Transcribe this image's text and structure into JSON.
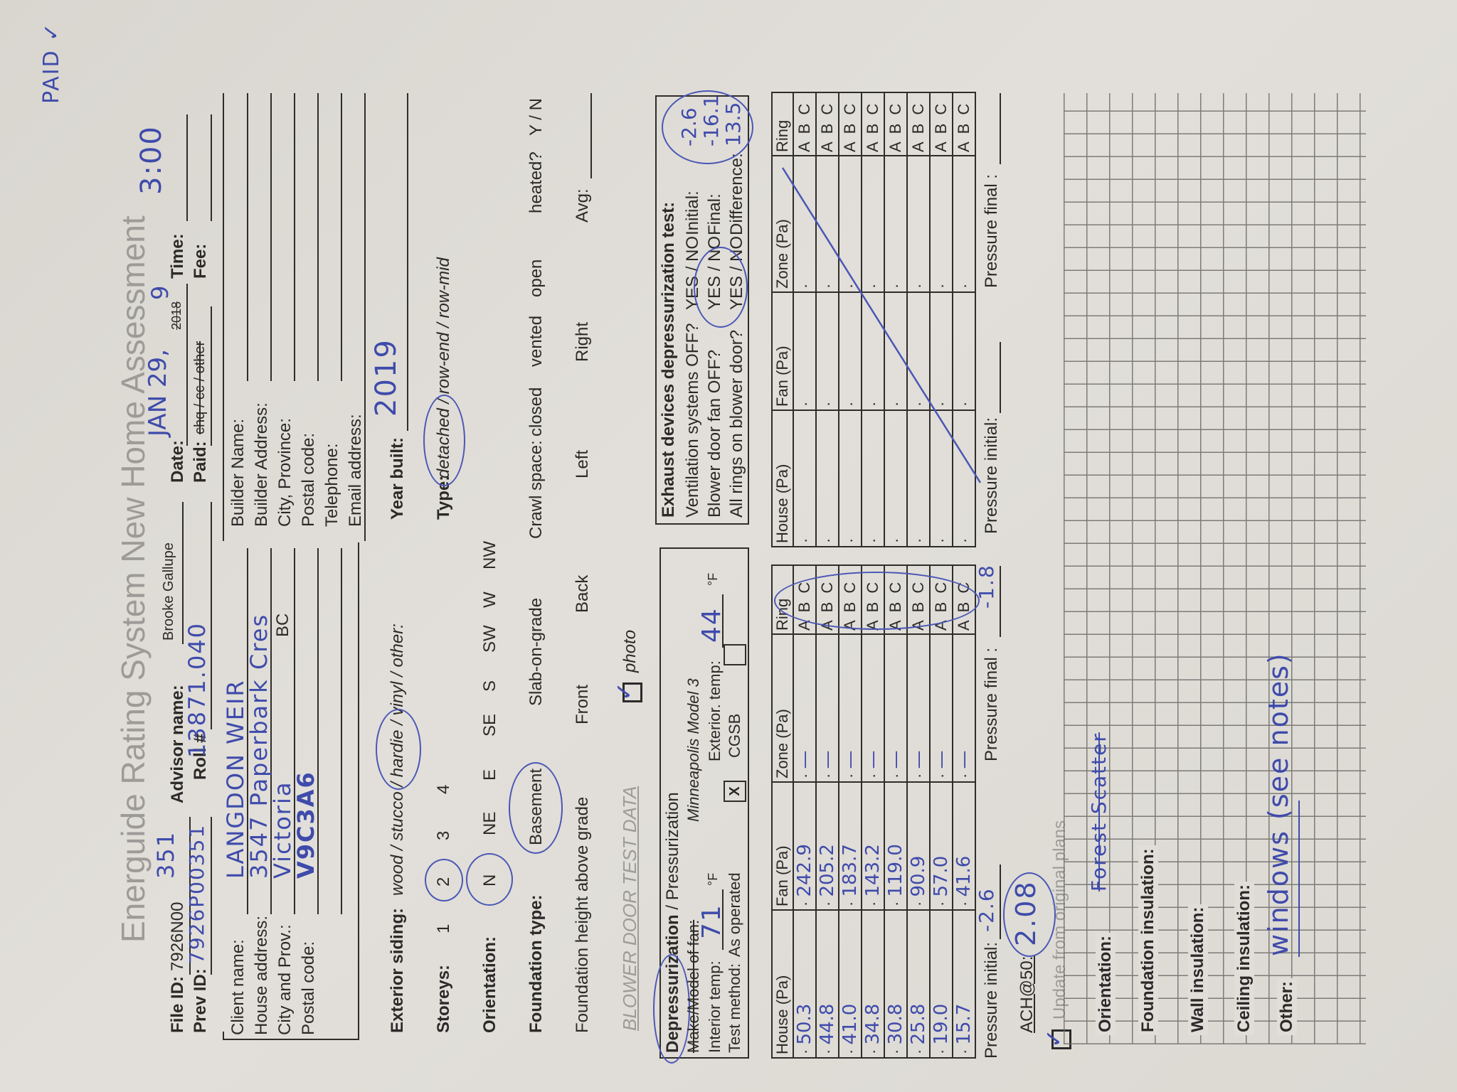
{
  "header": {
    "title": "Energuide Rating System New Home Assessment",
    "advisor_value": "Brooke Gallupe",
    "file_id_label": "File ID:",
    "file_id_printed": "7926N00",
    "file_id_hand": "351",
    "prev_id_label": "Prev ID:",
    "prev_id_value": "7926P00351",
    "advisor_label": "Advisor name:",
    "roll_label": "Roll #",
    "roll_value": "13871.040",
    "date_label": "Date:",
    "date_value": "JAN 29,",
    "date_year_printed": "2018",
    "date_year_hand": "9",
    "paid_label": "Paid:",
    "paid_options": "chq / cc / other",
    "time_label": "Time:",
    "time_value": "3:00",
    "fee_label": "Fee:",
    "paid_note": "PAID ✓"
  },
  "client": {
    "fields": [
      {
        "label": "Client name:",
        "value": "LANGDON WEIR"
      },
      {
        "label": "House address:",
        "value": "3547 Paperbark Cres"
      },
      {
        "label": "City and Prov.:",
        "value": "Victoria",
        "suffix": "BC"
      },
      {
        "label": "Postal code:",
        "value": "V9C3A6"
      }
    ]
  },
  "builder": {
    "fields": [
      "Builder Name:",
      "Builder Address:",
      "City, Province:",
      "Postal code:",
      "Telephone:",
      "Email address:"
    ]
  },
  "house": {
    "siding_label": "Exterior siding:",
    "siding_options": "wood / stucco / hardie / vinyl / other:",
    "siding_selected": "hardie",
    "year_label": "Year built:",
    "year_value": "2019",
    "storeys_label": "Storeys:",
    "storeys": [
      "1",
      "2",
      "3",
      "4"
    ],
    "storeys_selected": "2",
    "type_label": "Type:",
    "type_options": "detached / row-end / row-mid",
    "type_selected": "detached",
    "orientation_label": "Orientation:",
    "orientations": [
      "N",
      "NE",
      "E",
      "SE",
      "S",
      "SW",
      "W",
      "NW"
    ],
    "orientation_selected": "N",
    "foundation_label": "Foundation type:",
    "foundation_options": [
      "Basement",
      "Slab-on-grade"
    ],
    "foundation_selected": "Basement",
    "crawl_label": "Crawl space:",
    "crawl_options": [
      "closed",
      "vented",
      "open"
    ],
    "heated_label": "heated?",
    "heated_options": "Y / N",
    "height_label": "Foundation height above grade",
    "height_options": [
      "Front",
      "Back",
      "Left",
      "Right"
    ],
    "avg_label": "Avg:",
    "blower_title": "BLOWER DOOR TEST DATA",
    "photo_label": "photo",
    "photo_checked": true
  },
  "depress": {
    "title_bold": "Depressurization",
    "title_rest": " / Pressurization",
    "fan_label": "Make/Model of fan:",
    "fan_value": "Minneapolis Model 3",
    "interior_label": "Interior temp:",
    "interior_value": "71",
    "unit": "°F",
    "exterior_label": "Exterior. temp:",
    "exterior_value": "44",
    "method_label": "Test method:",
    "method_as_operated": "As operated",
    "method_mark": "X",
    "method_cgsb": "CGSB"
  },
  "exhaust": {
    "title": "Exhaust devices depressurization test:",
    "questions": [
      {
        "q": "Ventilation systems OFF?",
        "opt": "YES / NO",
        "k": "Initial:",
        "v": "-2.6"
      },
      {
        "q": "Blower door fan OFF?",
        "opt": "YES / NO",
        "k": "Final:",
        "v": "-16.1"
      },
      {
        "q": "All rings on blower door?",
        "opt": "YES / NO",
        "k": "Difference:",
        "v": "13.5"
      }
    ]
  },
  "table_headers": [
    "House (Pa)",
    "Fan (Pa)",
    "Zone (Pa)",
    "Ring"
  ],
  "table1": {
    "rows": [
      {
        "house": "50.3",
        "fan": "242.9",
        "zone": "—",
        "ring": "A B C"
      },
      {
        "house": "44.8",
        "fan": "205.2",
        "zone": "—",
        "ring": "A B C"
      },
      {
        "house": "41.0",
        "fan": "183.7",
        "zone": "—",
        "ring": "A B C"
      },
      {
        "house": "34.8",
        "fan": "143.2",
        "zone": "—",
        "ring": "A B C"
      },
      {
        "house": "30.8",
        "fan": "119.0",
        "zone": "—",
        "ring": "A B C"
      },
      {
        "house": "25.8",
        "fan": "90.9",
        "zone": "—",
        "ring": "A B C"
      },
      {
        "house": "19.0",
        "fan": "57.0",
        "zone": "—",
        "ring": "A B C"
      },
      {
        "house": "15.7",
        "fan": "41.6",
        "zone": "—",
        "ring": "A B C"
      }
    ],
    "pressure_initial_label": "Pressure initial:",
    "pressure_initial": "-2.6",
    "pressure_final_label": "Pressure final :",
    "pressure_final": "-1.8"
  },
  "table2": {
    "rows": [
      {
        "house": "",
        "fan": "",
        "zone": "",
        "ring": "A B C"
      },
      {
        "house": "",
        "fan": "",
        "zone": "",
        "ring": "A B C"
      },
      {
        "house": "",
        "fan": "",
        "zone": "",
        "ring": "A B C"
      },
      {
        "house": "",
        "fan": "",
        "zone": "",
        "ring": "A B C"
      },
      {
        "house": "",
        "fan": "",
        "zone": "",
        "ring": "A B C"
      },
      {
        "house": "",
        "fan": "",
        "zone": "",
        "ring": "A B C"
      },
      {
        "house": "",
        "fan": "",
        "zone": "",
        "ring": "A B C"
      },
      {
        "house": "",
        "fan": "",
        "zone": "",
        "ring": "A B C"
      }
    ],
    "pressure_initial_label": "Pressure initial:",
    "pressure_final_label": "Pressure final :"
  },
  "ach": {
    "label": "ACH@50:",
    "value": "2.08"
  },
  "update": {
    "label": "Update from original plans",
    "checked": true
  },
  "notes": {
    "orientation_label": "Orientation:",
    "orientation_value": "Forest Scatter",
    "foundation_label": "Foundation insulation:",
    "wall_label": "Wall insulation:",
    "ceiling_label": "Ceiling insulation:",
    "other_label": "Other:",
    "other_value": "windows (see notes)"
  },
  "colors": {
    "ink": "#3e4bab",
    "print": "#2b2a28",
    "paper": "#e1ded9"
  }
}
